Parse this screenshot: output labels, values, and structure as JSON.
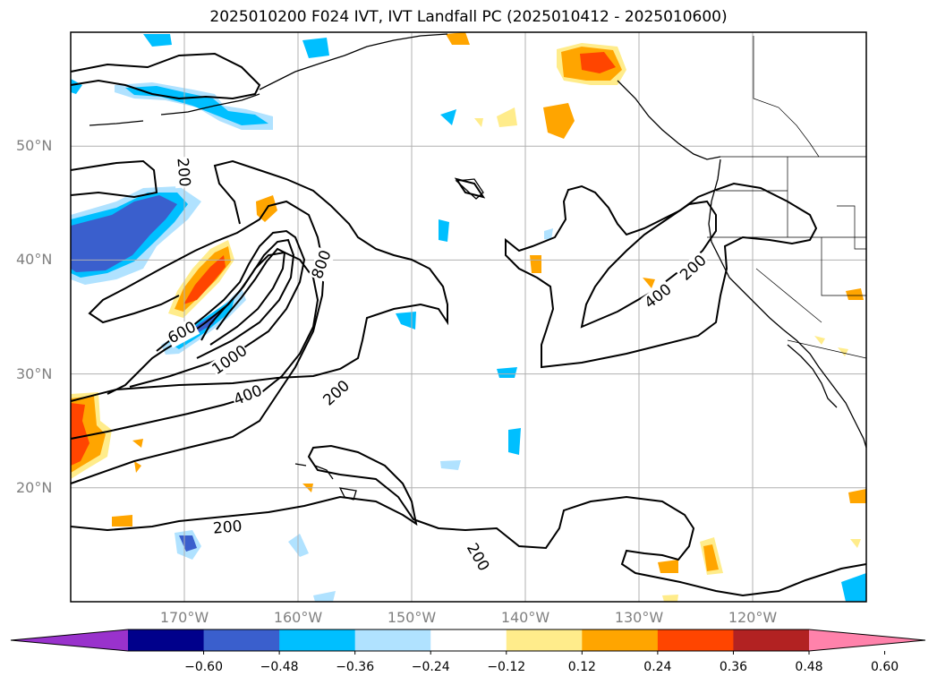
{
  "title": "2025010200 F024 IVT, IVT Landfall PC (2025010412 - 2025010600)",
  "map": {
    "projection": "cylindrical",
    "lon_range": [
      -180,
      -110
    ],
    "lat_range": [
      10,
      60
    ],
    "gridlines": true,
    "lat_ticks": [
      {
        "value": 50,
        "label": "50°N"
      },
      {
        "value": 40,
        "label": "40°N"
      },
      {
        "value": 30,
        "label": "30°N"
      },
      {
        "value": 20,
        "label": "20°N"
      }
    ],
    "lon_ticks": [
      {
        "value": -170,
        "label": "170°W"
      },
      {
        "value": -160,
        "label": "160°W"
      },
      {
        "value": -150,
        "label": "150°W"
      },
      {
        "value": -140,
        "label": "140°W"
      },
      {
        "value": -130,
        "label": "130°W"
      },
      {
        "value": -120,
        "label": "120°W"
      }
    ],
    "contour_labels": [
      {
        "text": "200",
        "lon": -170.1,
        "lat": 47.7,
        "rot": 85
      },
      {
        "text": "800",
        "lon": -157.9,
        "lat": 39.6,
        "rot": -70
      },
      {
        "text": "600",
        "lon": -170.2,
        "lat": 33.6,
        "rot": -28
      },
      {
        "text": "1000",
        "lon": -166.0,
        "lat": 31.2,
        "rot": -35
      },
      {
        "text": "400",
        "lon": -164.4,
        "lat": 28.1,
        "rot": -22
      },
      {
        "text": "200",
        "lon": -156.6,
        "lat": 28.3,
        "rot": -42
      },
      {
        "text": "400",
        "lon": -128.3,
        "lat": 36.8,
        "rot": -38
      },
      {
        "text": "200",
        "lon": -125.2,
        "lat": 39.3,
        "rot": -43
      },
      {
        "text": "200",
        "lon": -166.2,
        "lat": 16.5,
        "rot": -5
      },
      {
        "text": "200",
        "lon": -144.2,
        "lat": 13.9,
        "rot": 60
      }
    ]
  },
  "colorbar": {
    "colors": [
      "#9932cc",
      "#00008b",
      "#3a5fcd",
      "#00bfff",
      "#b0e2ff",
      "#ffffff",
      "#ffec8b",
      "#ffa500",
      "#ff4500",
      "#b22222",
      "#ff82ab"
    ],
    "tick_labels": [
      "−0.60",
      "−0.48",
      "−0.36",
      "−0.24",
      "−0.12",
      "0.12",
      "0.24",
      "0.36",
      "0.48",
      "0.60"
    ]
  }
}
